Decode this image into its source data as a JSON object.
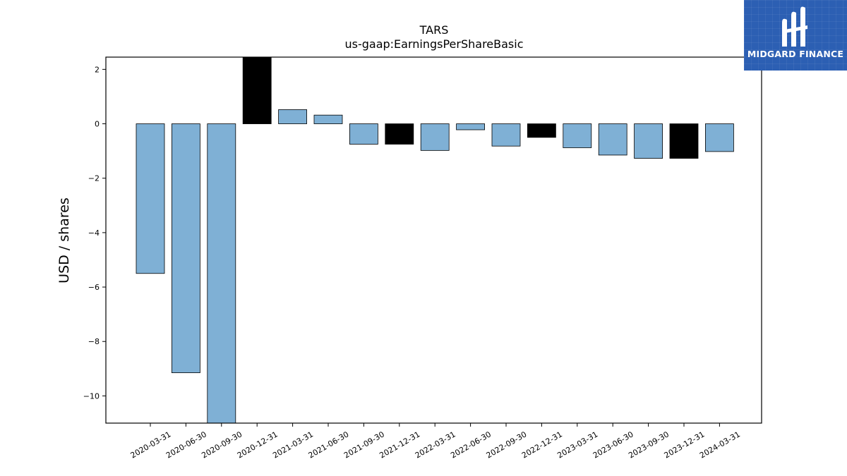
{
  "chart_data": {
    "type": "bar",
    "title": "TARS",
    "subtitle": "us-gaap:EarningsPerShareBasic",
    "xlabel": "",
    "ylabel": "USD / shares",
    "categories": [
      "2020-03-31",
      "2020-06-30",
      "2020-09-30",
      "2020-12-31",
      "2021-03-31",
      "2021-06-30",
      "2021-09-30",
      "2021-12-31",
      "2022-03-31",
      "2022-06-30",
      "2022-09-30",
      "2022-12-31",
      "2023-03-31",
      "2023-06-30",
      "2023-09-30",
      "2023-12-31",
      "2024-03-31"
    ],
    "values": [
      -5.5,
      -9.15,
      -11.9,
      2.45,
      0.52,
      0.32,
      -0.75,
      -0.75,
      -0.98,
      -0.22,
      -0.82,
      -0.5,
      -0.88,
      -1.15,
      -1.27,
      -1.27,
      -1.02
    ],
    "highlight": [
      false,
      false,
      false,
      true,
      false,
      false,
      false,
      true,
      false,
      false,
      false,
      true,
      false,
      false,
      false,
      true,
      false
    ],
    "colors": {
      "bar": "#7fb0d5",
      "highlight": "#000000",
      "edge": "#000000"
    },
    "ylim": [
      -11,
      2.45
    ],
    "yticks": [
      2,
      0,
      -2,
      -4,
      -6,
      -8,
      -10
    ],
    "yticklabels": [
      "2",
      "0",
      "−2",
      "−4",
      "−6",
      "−8",
      "−10"
    ],
    "grid": false,
    "legend": "none"
  },
  "branding": {
    "logo_text": "MIDGARD FINANCE",
    "logo_color": "#2c5fb3",
    "logo_icon": "midgard-m-icon"
  }
}
